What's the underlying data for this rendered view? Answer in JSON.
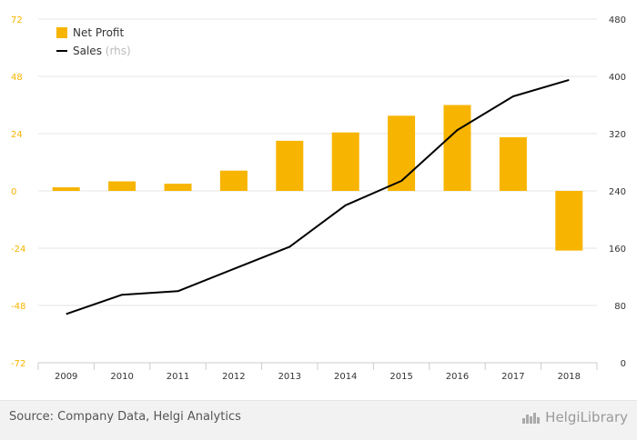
{
  "chart_data": {
    "type": "bar",
    "categories": [
      "2009",
      "2010",
      "2011",
      "2012",
      "2013",
      "2014",
      "2015",
      "2016",
      "2017",
      "2018"
    ],
    "series": [
      {
        "name": "Net Profit",
        "type": "bar",
        "axis": "left",
        "color": "#f7b400",
        "values": [
          1.5,
          4,
          3,
          8.5,
          21,
          24.5,
          31.5,
          36,
          22.5,
          -25
        ]
      },
      {
        "name": "Sales",
        "type": "line",
        "axis": "right",
        "color": "#000000",
        "values": [
          68,
          95,
          100,
          131,
          162,
          220,
          254,
          325,
          372,
          395
        ]
      }
    ],
    "yleft": {
      "min": -72,
      "max": 72,
      "ticks": [
        72,
        48,
        24,
        0,
        -24,
        -48,
        -72
      ],
      "tick_color": "#f7b400"
    },
    "yright": {
      "min": 0,
      "max": 480,
      "ticks": [
        480,
        400,
        320,
        240,
        160,
        80,
        0
      ],
      "tick_color": "#333333"
    },
    "legend": [
      {
        "label": "Net Profit",
        "suffix": "",
        "color": "#f7b400",
        "kind": "box"
      },
      {
        "label": "Sales",
        "suffix": "(rhs)",
        "color": "#000000",
        "kind": "line"
      }
    ],
    "legend_position": "top-left",
    "grid": true
  },
  "footer": {
    "source": "Source: Company Data, Helgi Analytics",
    "brand": "HelgiLibrary",
    "logo_icon": "helgi-library-logo-icon"
  }
}
